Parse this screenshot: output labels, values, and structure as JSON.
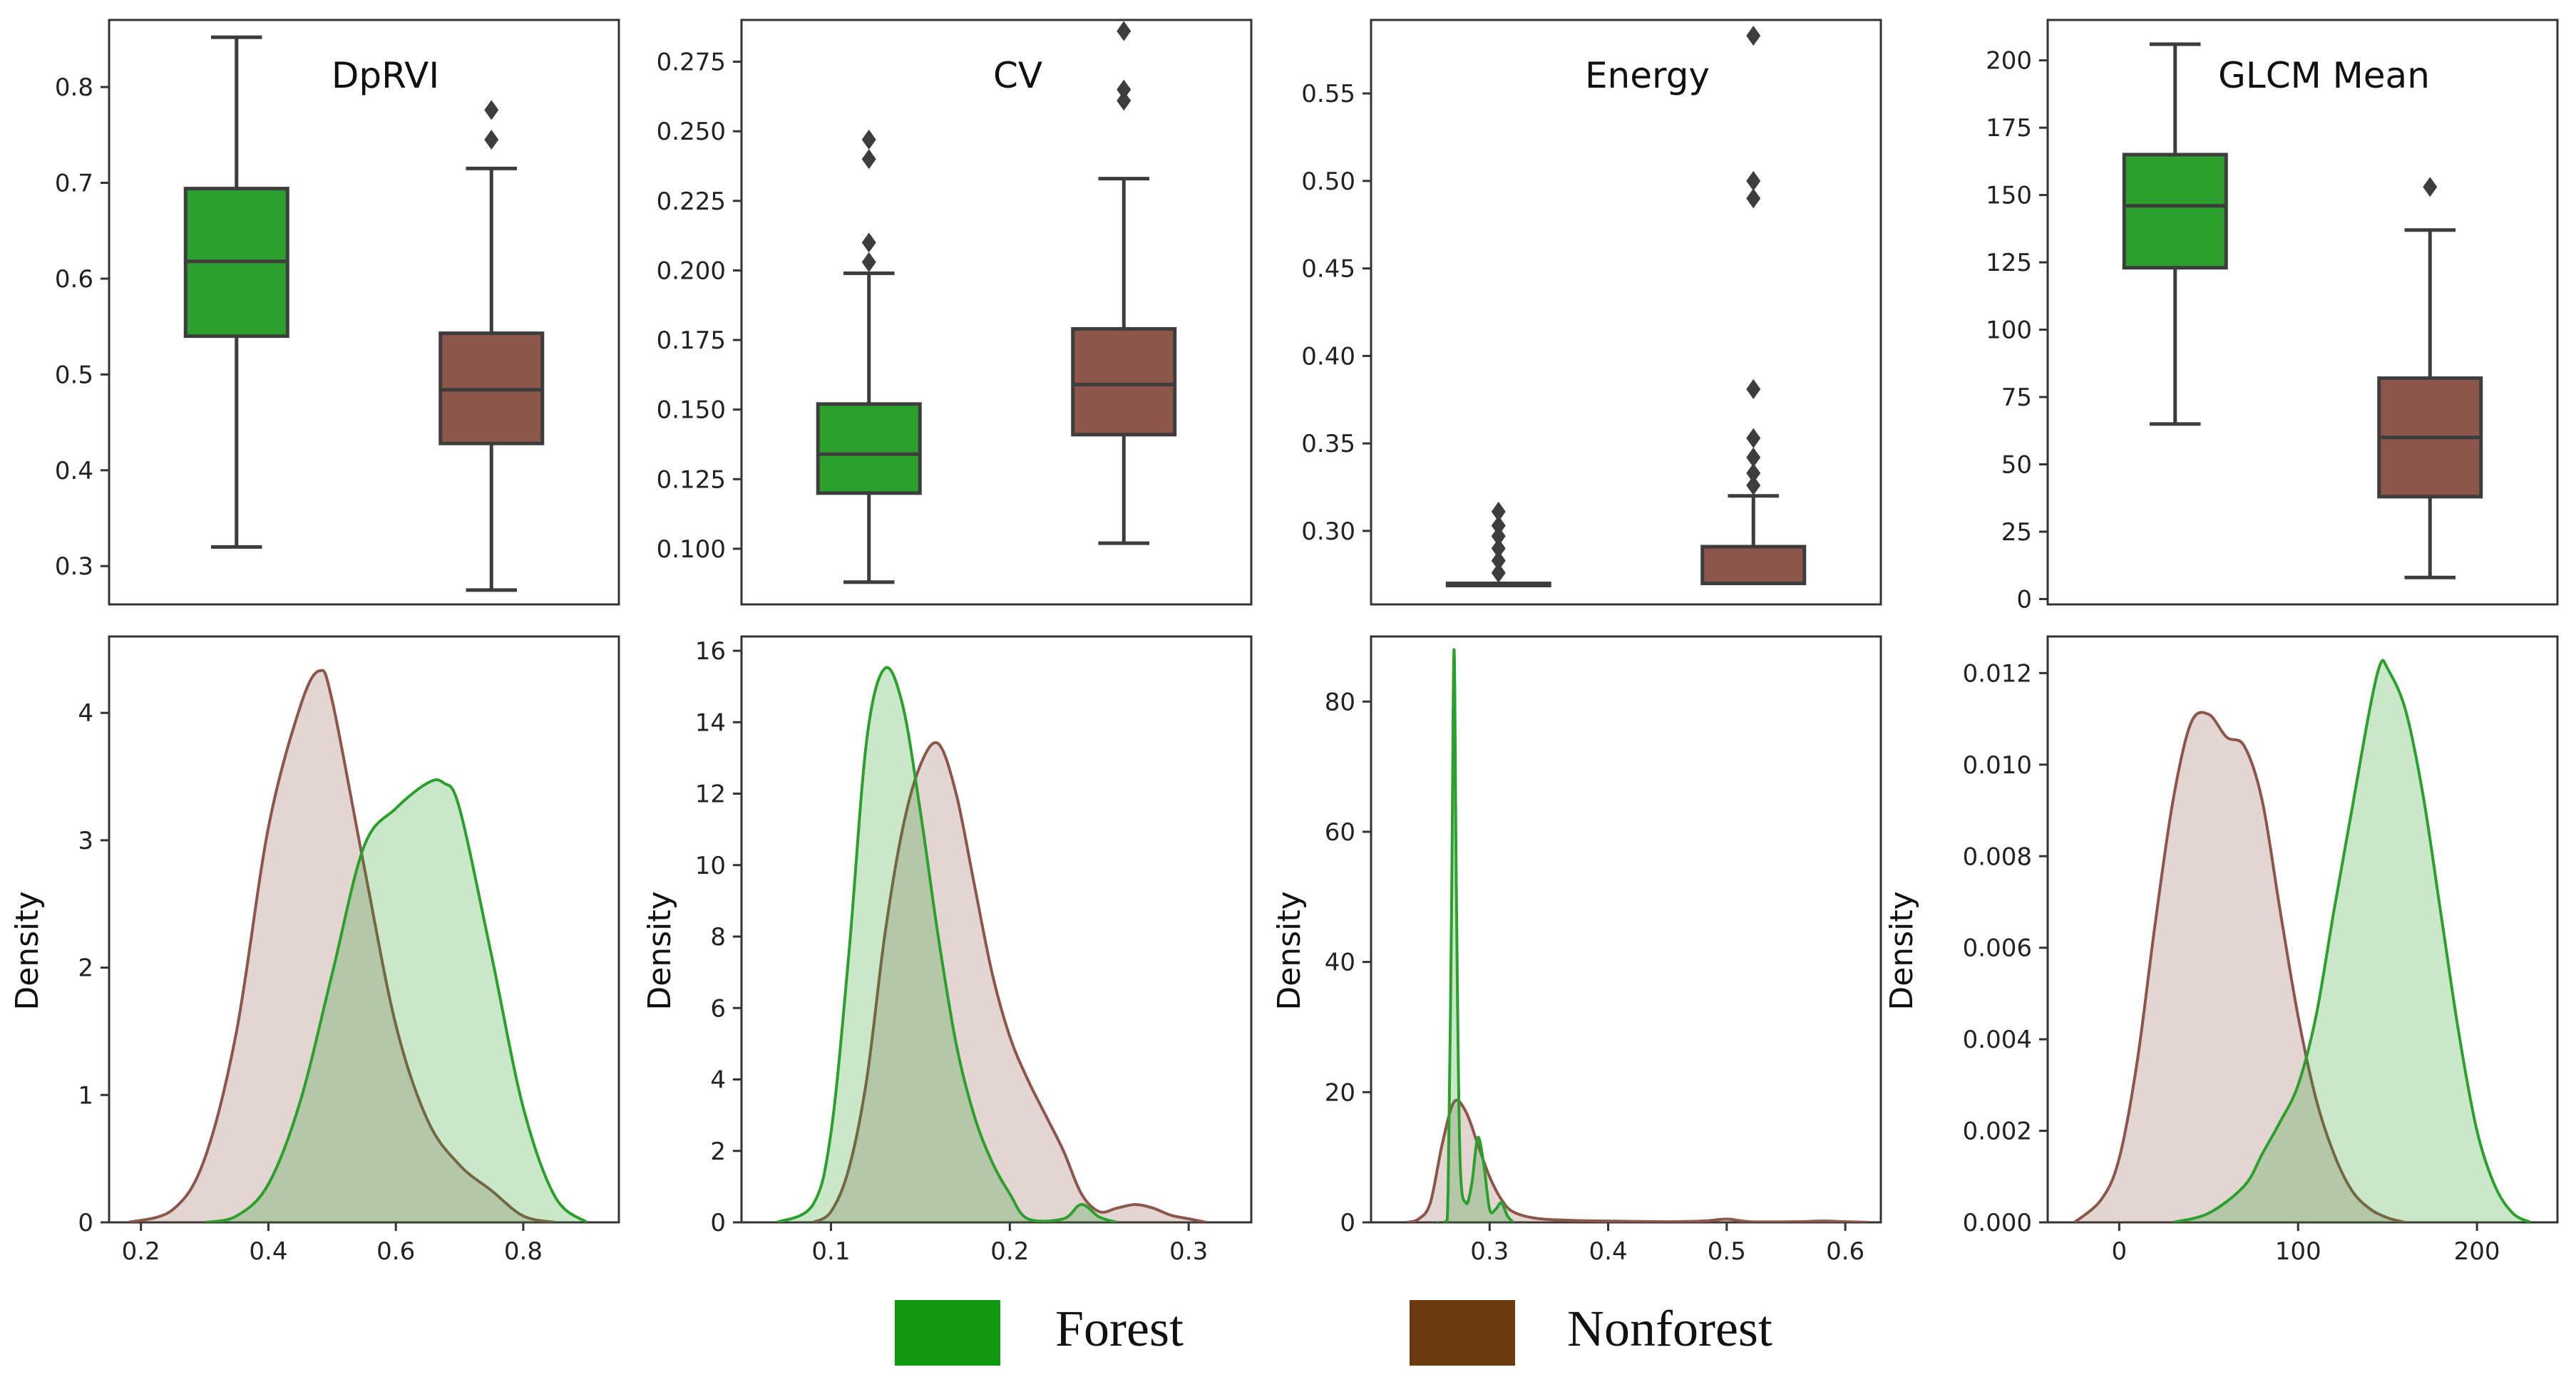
{
  "colors": {
    "forest": "#2ca02c",
    "nonforest": "#8c564b",
    "legend_forest": "#119911",
    "legend_nonforest": "#6b3a0f"
  },
  "legend": [
    {
      "label": "Forest",
      "color": "#119911"
    },
    {
      "label": "Nonforest",
      "color": "#6b3a0f"
    }
  ],
  "chart_data": [
    {
      "type": "box",
      "title": "DpRVI",
      "ylim": [
        0.26,
        0.87
      ],
      "yticks": [
        0.3,
        0.4,
        0.5,
        0.6,
        0.7,
        0.8
      ],
      "series": [
        {
          "name": "Forest",
          "whisker_low": 0.32,
          "q1": 0.54,
          "median": 0.618,
          "q3": 0.694,
          "whisker_high": 0.852,
          "outliers": []
        },
        {
          "name": "Nonforest",
          "whisker_low": 0.275,
          "q1": 0.428,
          "median": 0.484,
          "q3": 0.543,
          "whisker_high": 0.715,
          "outliers": [
            0.745,
            0.776
          ]
        }
      ]
    },
    {
      "type": "box",
      "title": "CV",
      "ylim": [
        0.08,
        0.29
      ],
      "yticks": [
        0.1,
        0.125,
        0.15,
        0.175,
        0.2,
        0.225,
        0.25,
        0.275
      ],
      "series": [
        {
          "name": "Forest",
          "whisker_low": 0.088,
          "q1": 0.12,
          "median": 0.134,
          "q3": 0.152,
          "whisker_high": 0.199,
          "outliers": [
            0.203,
            0.21,
            0.24,
            0.247
          ]
        },
        {
          "name": "Nonforest",
          "whisker_low": 0.102,
          "q1": 0.141,
          "median": 0.159,
          "q3": 0.179,
          "whisker_high": 0.233,
          "outliers": [
            0.261,
            0.265,
            0.286
          ]
        }
      ]
    },
    {
      "type": "box",
      "title": "Energy",
      "ylim": [
        0.258,
        0.592
      ],
      "yticks": [
        0.3,
        0.35,
        0.4,
        0.45,
        0.5,
        0.55
      ],
      "series": [
        {
          "name": "Forest",
          "whisker_low": 0.27,
          "q1": 0.27,
          "median": 0.27,
          "q3": 0.27,
          "whisker_high": 0.27,
          "outliers": [
            0.276,
            0.283,
            0.29,
            0.297,
            0.303,
            0.311
          ]
        },
        {
          "name": "Nonforest",
          "whisker_low": 0.27,
          "q1": 0.27,
          "median": 0.27,
          "q3": 0.291,
          "whisker_high": 0.32,
          "outliers": [
            0.326,
            0.333,
            0.342,
            0.353,
            0.381,
            0.49,
            0.5,
            0.583
          ]
        }
      ]
    },
    {
      "type": "box",
      "title": "GLCM Mean",
      "ylim": [
        -2,
        215
      ],
      "yticks": [
        0,
        25,
        50,
        75,
        100,
        125,
        150,
        175,
        200
      ],
      "series": [
        {
          "name": "Forest",
          "whisker_low": 65,
          "q1": 123,
          "median": 146,
          "q3": 165,
          "whisker_high": 206,
          "outliers": []
        },
        {
          "name": "Nonforest",
          "whisker_low": 8,
          "q1": 38,
          "median": 60,
          "q3": 82,
          "whisker_high": 137,
          "outliers": [
            153
          ]
        }
      ]
    },
    {
      "type": "area",
      "ylabel": "Density",
      "xlim": [
        0.15,
        0.95
      ],
      "ylim": [
        0,
        4.6
      ],
      "xticks": [
        "0.2",
        "0.4",
        "0.6",
        "0.8"
      ],
      "yticks": [
        "0",
        "1",
        "2",
        "3",
        "4"
      ],
      "series": [
        {
          "name": "Forest",
          "x": [
            0.3,
            0.35,
            0.4,
            0.45,
            0.5,
            0.55,
            0.6,
            0.65,
            0.675,
            0.7,
            0.75,
            0.8,
            0.85,
            0.9
          ],
          "y": [
            0,
            0.05,
            0.3,
            0.95,
            1.95,
            2.95,
            3.25,
            3.45,
            3.45,
            3.25,
            2.1,
            0.9,
            0.2,
            0
          ]
        },
        {
          "name": "Nonforest",
          "x": [
            0.18,
            0.25,
            0.3,
            0.35,
            0.4,
            0.45,
            0.48,
            0.5,
            0.55,
            0.6,
            0.65,
            0.7,
            0.75,
            0.8,
            0.85
          ],
          "y": [
            0,
            0.1,
            0.5,
            1.5,
            3.1,
            4.05,
            4.33,
            4.1,
            2.8,
            1.55,
            0.8,
            0.45,
            0.25,
            0.05,
            0
          ]
        }
      ]
    },
    {
      "type": "area",
      "ylabel": "Density",
      "xlim": [
        0.05,
        0.335
      ],
      "ylim": [
        0,
        16.4
      ],
      "xticks": [
        "0.1",
        "0.2",
        "0.3"
      ],
      "yticks": [
        "0",
        "2",
        "4",
        "6",
        "8",
        "10",
        "12",
        "14",
        "16"
      ],
      "series": [
        {
          "name": "Forest",
          "x": [
            0.07,
            0.09,
            0.1,
            0.11,
            0.12,
            0.13,
            0.14,
            0.15,
            0.16,
            0.17,
            0.18,
            0.19,
            0.2,
            0.21,
            0.23,
            0.24,
            0.25,
            0.26
          ],
          "y": [
            0,
            0.5,
            2.5,
            7.5,
            13.5,
            15.5,
            14.5,
            11.5,
            8,
            5,
            3,
            1.7,
            0.8,
            0.1,
            0.1,
            0.5,
            0.15,
            0
          ]
        },
        {
          "name": "Nonforest",
          "x": [
            0.09,
            0.1,
            0.11,
            0.12,
            0.13,
            0.14,
            0.15,
            0.16,
            0.17,
            0.18,
            0.19,
            0.2,
            0.21,
            0.22,
            0.23,
            0.24,
            0.25,
            0.26,
            0.27,
            0.28,
            0.29,
            0.3,
            0.31
          ],
          "y": [
            0,
            0.3,
            1.5,
            4,
            8,
            11,
            12.8,
            13.4,
            12,
            9.5,
            7,
            5.2,
            4,
            3,
            2,
            0.8,
            0.3,
            0.4,
            0.5,
            0.4,
            0.2,
            0.1,
            0
          ]
        }
      ]
    },
    {
      "type": "area",
      "ylabel": "Density",
      "xlim": [
        0.2,
        0.63
      ],
      "ylim": [
        0,
        90
      ],
      "xticks": [
        "0.3",
        "0.4",
        "0.5",
        "0.6"
      ],
      "yticks": [
        "0",
        "20",
        "40",
        "60",
        "80"
      ],
      "series": [
        {
          "name": "Forest",
          "x": [
            0.255,
            0.262,
            0.265,
            0.268,
            0.27,
            0.272,
            0.275,
            0.28,
            0.285,
            0.29,
            0.295,
            0.3,
            0.305,
            0.31,
            0.315,
            0.32
          ],
          "y": [
            0,
            0,
            5,
            50,
            88,
            50,
            10,
            3,
            6,
            13,
            9,
            2,
            2,
            3,
            1,
            0
          ]
        },
        {
          "name": "Nonforest",
          "x": [
            0.23,
            0.24,
            0.25,
            0.26,
            0.27,
            0.28,
            0.29,
            0.3,
            0.31,
            0.32,
            0.34,
            0.37,
            0.4,
            0.45,
            0.48,
            0.5,
            0.52,
            0.56,
            0.58,
            0.6,
            0.62
          ],
          "y": [
            0,
            0.5,
            3,
            12,
            18.5,
            17,
            12,
            7,
            3.5,
            1.6,
            0.6,
            0.3,
            0.2,
            0.1,
            0.2,
            0.5,
            0.1,
            0.1,
            0.2,
            0.1,
            0
          ]
        }
      ]
    },
    {
      "type": "area",
      "ylabel": "Density",
      "xlim": [
        -40,
        245
      ],
      "ylim": [
        0,
        0.0128
      ],
      "xticks": [
        "0",
        "100",
        "200"
      ],
      "yticks": [
        "0.000",
        "0.002",
        "0.004",
        "0.006",
        "0.008",
        "0.010",
        "0.012"
      ],
      "series": [
        {
          "name": "Forest",
          "x": [
            30,
            50,
            70,
            80,
            90,
            100,
            110,
            120,
            130,
            140,
            146,
            150,
            160,
            170,
            180,
            190,
            200,
            210,
            220,
            230
          ],
          "y": [
            0,
            0.0002,
            0.0008,
            0.0015,
            0.0022,
            0.003,
            0.0045,
            0.0068,
            0.009,
            0.0112,
            0.0122,
            0.0121,
            0.0112,
            0.0093,
            0.0067,
            0.0041,
            0.002,
            0.0008,
            0.0002,
            0
          ]
        },
        {
          "name": "Nonforest",
          "x": [
            -25,
            -10,
            0,
            10,
            20,
            30,
            40,
            50,
            60,
            70,
            80,
            90,
            100,
            110,
            120,
            130,
            140,
            150,
            160
          ],
          "y": [
            0,
            0.0005,
            0.0014,
            0.0035,
            0.0065,
            0.0092,
            0.0109,
            0.0111,
            0.0106,
            0.0104,
            0.0092,
            0.0068,
            0.0045,
            0.0027,
            0.0015,
            0.0007,
            0.0003,
            0.0001,
            0
          ]
        }
      ]
    }
  ]
}
